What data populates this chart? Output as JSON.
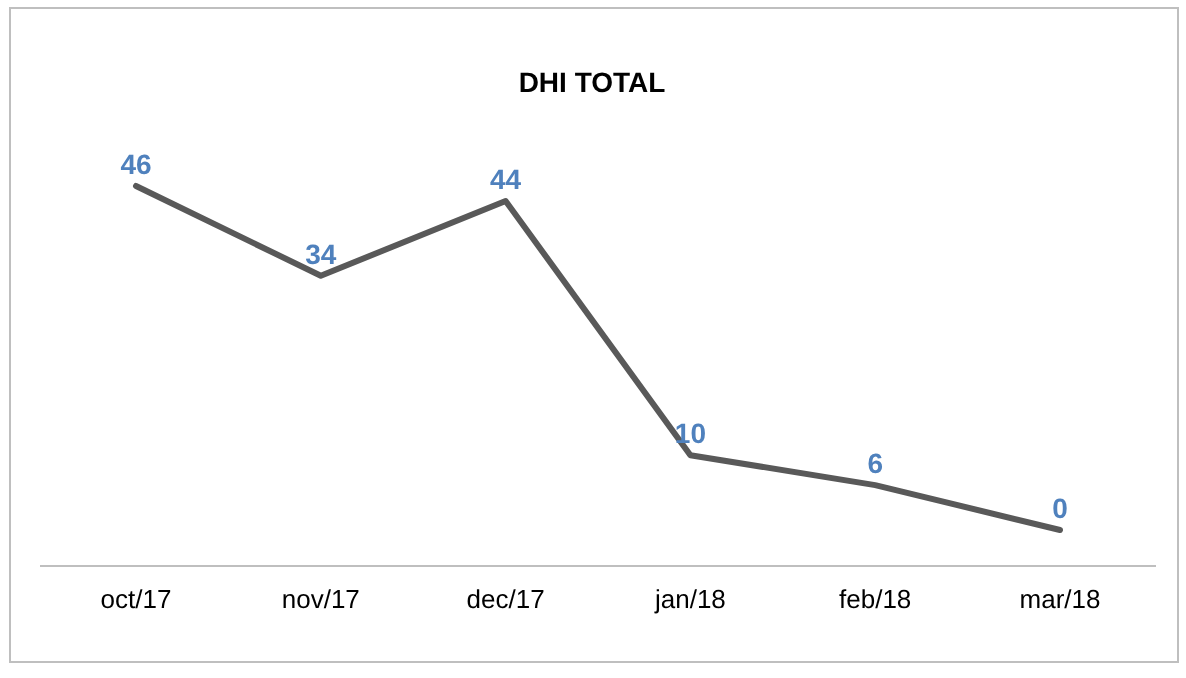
{
  "chart_data": {
    "type": "line",
    "title": "DHI TOTAL",
    "categories": [
      "oct/17",
      "nov/17",
      "dec/17",
      "jan/18",
      "feb/18",
      "mar/18"
    ],
    "series": [
      {
        "color": "#595959",
        "values": [
          46,
          34,
          44,
          10,
          6,
          0
        ]
      }
    ],
    "data_labels": true,
    "grid": false,
    "marker": "none",
    "line_style": "solid"
  }
}
